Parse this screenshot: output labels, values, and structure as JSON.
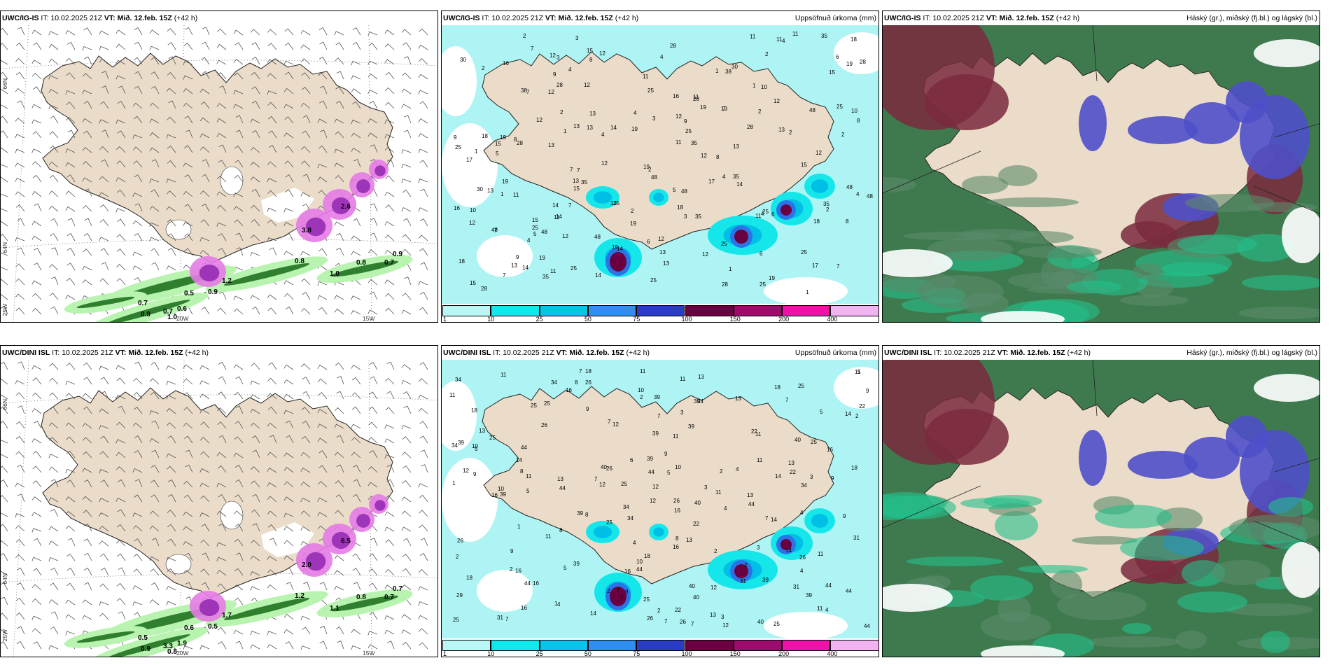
{
  "colors": {
    "land": "#eadcc9",
    "sea_bg": "#ffffff",
    "precip_light": "#aef4f4",
    "precip_cyan": "#15e6ea",
    "precip_mid": "#00bfe6",
    "precip_blue": "#2a74e8",
    "precip_dark": "#6a0040",
    "snow_pink": "#e67be6",
    "snow_purple": "#9e35b8",
    "green_light": "#b8f3b0",
    "green_dark": "#2f7f2f",
    "cloud_high": "#7a2a3d",
    "cloud_mid": "#4f4fc9",
    "cloud_low": "#2f8f6a",
    "cloud_base": "#3f7a4f"
  },
  "panels": [
    {
      "id": "ig-wind",
      "model": "UWC/IG-IS",
      "it_label": "IT:",
      "it_value": "10.02.2025 21Z",
      "vt_label": "VT:",
      "vt_value": "Mið. 12.feb. 15Z",
      "lead": "(+42 h)",
      "right": "",
      "lat_labels": [
        "66N",
        "64N",
        "25W"
      ],
      "lon_labels": [
        "20W",
        "15W"
      ],
      "values": [
        "0.7",
        "0.5",
        "0.9",
        "1.0",
        "0.8",
        "0.7",
        "0.9",
        "1.0",
        "0.8",
        "0.9",
        "0.7",
        "0.6",
        "1.2",
        "3.8",
        "2.6"
      ]
    },
    {
      "id": "ig-precip",
      "model": "UWC/IG-IS",
      "it_label": "IT:",
      "it_value": "10.02.2025 21Z",
      "vt_label": "VT:",
      "vt_value": "Mið. 12.feb. 15Z",
      "lead": "(+42 h)",
      "right": "Uppsöfnuð úrkoma (mm)",
      "values": [
        "1",
        "3",
        "2",
        "5",
        "4",
        "6",
        "9",
        "11",
        "8",
        "12",
        "17",
        "18",
        "14",
        "35",
        "28",
        "19",
        "30",
        "25",
        "13",
        "15",
        "10",
        "7",
        "16",
        "48",
        "38"
      ]
    },
    {
      "id": "ig-cloud",
      "model": "UWC/IG-IS",
      "it_label": "IT:",
      "it_value": "10.02.2025 21Z",
      "vt_label": "VT:",
      "vt_value": "Mið. 12.feb. 15Z",
      "lead": "(+42 h)",
      "right": "Háský (gr.), miðský (fj.bl.) og lágský (bl.)"
    },
    {
      "id": "dini-wind",
      "model": "UWC/DINI ISL",
      "it_label": "IT:",
      "it_value": "10.02.2025 21Z",
      "vt_label": "VT:",
      "vt_value": "Mið. 12.feb. 15Z",
      "lead": "(+42 h)",
      "right": "",
      "lat_labels": [
        "66N",
        "64N",
        "25W"
      ],
      "lon_labels": [
        "20W",
        "15W"
      ],
      "values": [
        "0.5",
        "0.6",
        "0.5",
        "0.8",
        "0.8",
        "0.7",
        "0.7",
        "1.1",
        "1.2",
        "0.9",
        "3.3",
        "1.9",
        "1.7",
        "2.0",
        "6.5"
      ]
    },
    {
      "id": "dini-precip",
      "model": "UWC/DINI ISL",
      "it_label": "IT:",
      "it_value": "10.02.2025 21Z",
      "vt_label": "VT:",
      "vt_value": "Mið. 12.feb. 15Z",
      "lead": "(+42 h)",
      "right": "Uppsöfnuð úrkoma (mm)",
      "values": [
        "4",
        "1",
        "2",
        "3",
        "5",
        "11",
        "9",
        "8",
        "14",
        "13",
        "7",
        "6",
        "39",
        "34",
        "31",
        "29",
        "26",
        "18",
        "25",
        "40",
        "22",
        "44",
        "12",
        "10",
        "16"
      ]
    },
    {
      "id": "dini-cloud",
      "model": "UWC/DINI ISL",
      "it_label": "IT:",
      "it_value": "10.02.2025 21Z",
      "vt_label": "VT:",
      "vt_value": "Mið. 12.feb. 15Z",
      "lead": "(+42 h)",
      "right": "Háský (gr.), miðský (fj.bl.) og lágský (bl.)"
    }
  ],
  "colorbar": {
    "labels": [
      "1",
      "10",
      "25",
      "50",
      "75",
      "100",
      "150",
      "200",
      "400"
    ],
    "colors": [
      "#b9f6f6",
      "#10e8ec",
      "#08c4ea",
      "#2f8ff0",
      "#2a3cc4",
      "#6a0040",
      "#9c0c6c",
      "#ee12a8",
      "#f2b3f2"
    ]
  }
}
